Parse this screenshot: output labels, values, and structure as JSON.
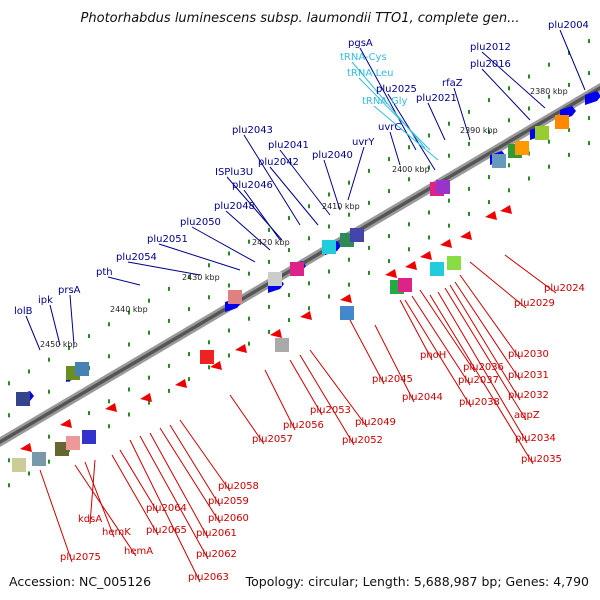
{
  "title": "Photorhabdus luminescens subsp. laumondii TTO1, complete gen...",
  "footer": {
    "accession": "Accession: NC_005126",
    "topology": "Topology: circular; Length: 5,688,987 bp; Genes: 4,790"
  },
  "colors": {
    "forward_label": "#00008b",
    "reverse_label": "#cc0000",
    "trna_label": "#33bbdd",
    "forward_gene": "#0000ee",
    "reverse_gene": "#ee0000",
    "tick": "#228b22",
    "backbone": "#666666"
  },
  "kbp_labels": [
    "2380 kbp",
    "2390 kbp",
    "2400 kbp",
    "2410 kbp",
    "2420 kbp",
    "2430 kbp",
    "2440 kbp",
    "2450 kbp"
  ],
  "forward_genes": [
    {
      "label": "lolB"
    },
    {
      "label": "ipk"
    },
    {
      "label": "prsA"
    },
    {
      "label": "pth"
    },
    {
      "label": "plu2054"
    },
    {
      "label": "plu2051"
    },
    {
      "label": "plu2050"
    },
    {
      "label": "plu2048"
    },
    {
      "label": "ISPlu3U"
    },
    {
      "label": "plu2046"
    },
    {
      "label": "plu2043"
    },
    {
      "label": "plu2042"
    },
    {
      "label": "plu2041"
    },
    {
      "label": "plu2040"
    },
    {
      "label": "uvrY"
    },
    {
      "label": "uvrC"
    },
    {
      "label": "plu2025"
    },
    {
      "label": "pgsA"
    },
    {
      "label": "rfaZ"
    },
    {
      "label": "plu2021"
    },
    {
      "label": "plu2016"
    },
    {
      "label": "plu2012"
    },
    {
      "label": "plu2004"
    }
  ],
  "trna_genes": [
    {
      "label": "tRNA-Cys"
    },
    {
      "label": "tRNA-Leu"
    },
    {
      "label": "tRNA-Gly"
    }
  ],
  "reverse_genes": [
    {
      "label": "plu2024"
    },
    {
      "label": "plu2029"
    },
    {
      "label": "plu2030"
    },
    {
      "label": "plu2031"
    },
    {
      "label": "plu2032"
    },
    {
      "label": "aqpZ"
    },
    {
      "label": "plu2034"
    },
    {
      "label": "plu2035"
    },
    {
      "label": "plu2036"
    },
    {
      "label": "plu2037"
    },
    {
      "label": "plu2038"
    },
    {
      "label": "phoH"
    },
    {
      "label": "plu2044"
    },
    {
      "label": "plu2045"
    },
    {
      "label": "plu2049"
    },
    {
      "label": "plu2052"
    },
    {
      "label": "plu2053"
    },
    {
      "label": "plu2056"
    },
    {
      "label": "plu2057"
    },
    {
      "label": "plu2058"
    },
    {
      "label": "plu2059"
    },
    {
      "label": "plu2060"
    },
    {
      "label": "plu2061"
    },
    {
      "label": "plu2062"
    },
    {
      "label": "plu2063"
    },
    {
      "label": "plu2064"
    },
    {
      "label": "plu2065"
    },
    {
      "label": "kdsA"
    },
    {
      "label": "hemK"
    },
    {
      "label": "hemA"
    },
    {
      "label": "plu2075"
    }
  ]
}
